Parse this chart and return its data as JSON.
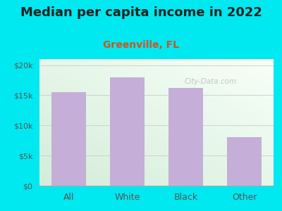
{
  "title": "Median per capita income in 2022",
  "subtitle": "Greenville, FL",
  "categories": [
    "All",
    "White",
    "Black",
    "Other"
  ],
  "values": [
    15500,
    18000,
    16200,
    8000
  ],
  "bar_color": "#c5aed8",
  "title_fontsize": 13,
  "subtitle_fontsize": 10,
  "subtitle_color": "#cc5522",
  "title_color": "#222222",
  "background_outer": "#00e8f0",
  "tick_color": "#555555",
  "ylim": [
    0,
    21000
  ],
  "yticks": [
    0,
    5000,
    10000,
    15000,
    20000
  ],
  "ytick_labels": [
    "$0",
    "$5k",
    "$10k",
    "$15k",
    "$20k"
  ],
  "watermark": "City-Data.com"
}
